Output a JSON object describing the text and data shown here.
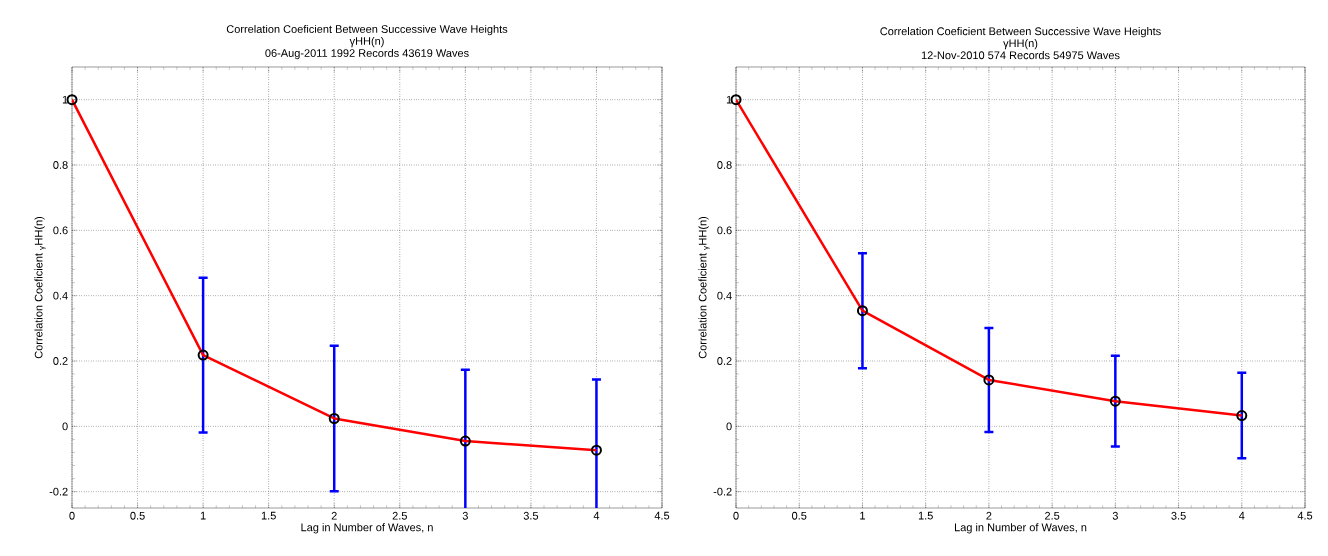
{
  "chart_data": [
    {
      "type": "line",
      "title": "Correlation Coeficient Between Successive Wave Heights",
      "subtitle": "γHH(n)",
      "annotations": [
        "06-Aug-2011    1992 Records    43619 Waves"
      ],
      "xlabel": "Lag in Number of Waves, n",
      "ylabel": "Correlation Coeficient $_{γ}$HH(n)",
      "x": [
        0,
        1,
        2,
        3,
        4
      ],
      "series": [
        {
          "color": "#ff0000",
          "values": [
            1,
            0.218,
            0.024,
            -0.045,
            -0.073
          ],
          "errors": [
            null,
            0.237,
            0.223,
            0.218,
            0.216
          ]
        }
      ],
      "xlim": [
        0,
        4.5
      ],
      "xticks": [
        0,
        0.5,
        1,
        1.5,
        2,
        2.5,
        3,
        3.5,
        4,
        4.5
      ],
      "ylim": [
        -0.25,
        1.1
      ],
      "yticks": [
        -0.2,
        0,
        0.2,
        0.4,
        0.6,
        0.8,
        1
      ],
      "grid": true,
      "marker": "circle",
      "line_style": "solid"
    },
    {
      "type": "line",
      "title": "Correlation Coeficient Between Successive Wave Heights",
      "subtitle": "γHH(n)",
      "annotations": [
        "12-Nov-2010    574 Records    54975 Waves"
      ],
      "xlabel": "Lag in Number of Waves, n",
      "ylabel": "Correlation Coeficient $_{γ}$HH(n)",
      "x": [
        0,
        1,
        2,
        3,
        4
      ],
      "series": [
        {
          "color": "#ff0000",
          "values": [
            1,
            0.354,
            0.142,
            0.077,
            0.033
          ],
          "errors": [
            null,
            0.176,
            0.159,
            0.139,
            0.131
          ]
        }
      ],
      "xlim": [
        0,
        4.5
      ],
      "xticks": [
        0,
        0.5,
        1,
        1.5,
        2,
        2.5,
        3,
        3.5,
        4,
        4.5
      ],
      "ylim": [
        -0.25,
        1.1
      ],
      "yticks": [
        -0.2,
        0,
        0.2,
        0.4,
        0.6,
        0.8,
        1
      ],
      "grid": true,
      "marker": "circle",
      "line_style": "solid"
    }
  ]
}
